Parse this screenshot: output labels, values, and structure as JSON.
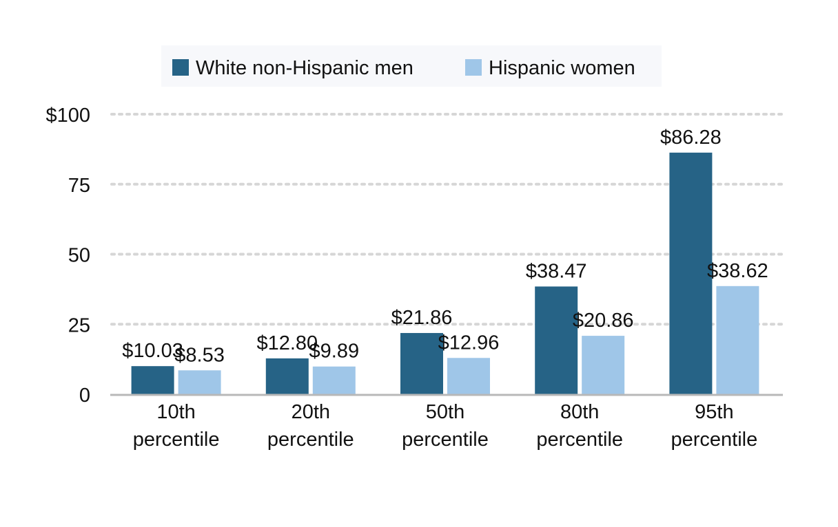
{
  "chart_data": {
    "type": "bar",
    "title": "",
    "xlabel": "",
    "ylabel": "",
    "categories": [
      [
        "10th",
        "percentile"
      ],
      [
        "20th",
        "percentile"
      ],
      [
        "50th",
        "percentile"
      ],
      [
        "80th",
        "percentile"
      ],
      [
        "95th",
        "percentile"
      ]
    ],
    "series": [
      {
        "name": "White non-Hispanic men",
        "color": "#266386",
        "values": [
          10.03,
          12.8,
          21.86,
          38.47,
          86.28
        ],
        "labels": [
          "$10.03",
          "$12.80",
          "$21.86",
          "$38.47",
          "$86.28"
        ]
      },
      {
        "name": "Hispanic women",
        "color": "#9fc6e8",
        "values": [
          8.53,
          9.89,
          12.96,
          20.86,
          38.62
        ],
        "labels": [
          "$8.53",
          "$9.89",
          "$12.96",
          "$20.86",
          "$38.62"
        ]
      }
    ],
    "ylim": [
      0,
      100
    ],
    "yticks": [
      0,
      25,
      50,
      75,
      100
    ],
    "ytick_labels": [
      "0",
      "25",
      "50",
      "75",
      "$100"
    ],
    "grid": true,
    "legend_position": "top-center"
  }
}
